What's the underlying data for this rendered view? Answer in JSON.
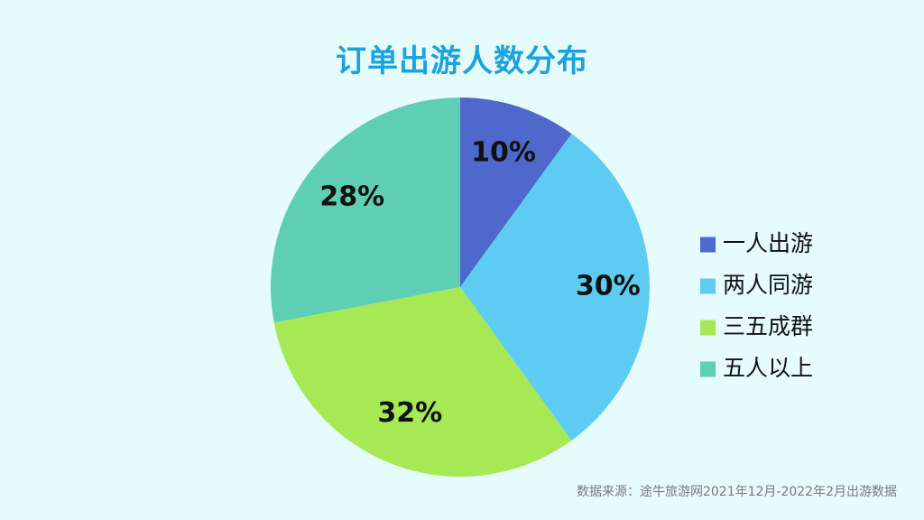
{
  "chart_data": {
    "type": "pie",
    "title": "订单出游人数分布",
    "categories": [
      "一人出游",
      "两人同游",
      "三五成群",
      "五人以上"
    ],
    "values": [
      10,
      30,
      32,
      28
    ],
    "labels": [
      "10%",
      "30%",
      "32%",
      "28%"
    ],
    "colors": [
      "#4f68cc",
      "#5ecbf2",
      "#a6e954",
      "#5ecfb4"
    ],
    "legend": "right"
  },
  "source": "数据来源：途牛旅游网2021年12月-2022年2月出游数据"
}
